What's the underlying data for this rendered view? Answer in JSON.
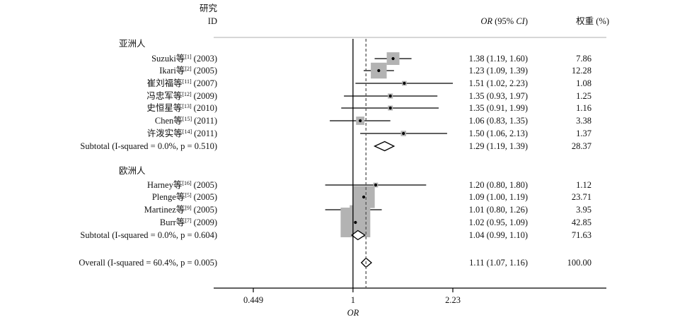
{
  "chart_data": {
    "type": "forest",
    "header": {
      "study_line1": "研究",
      "study_line2": "ID",
      "or_label_italic": "OR",
      "or_label_paren": " (95% ",
      "or_label_ci": "CI",
      "or_label_close": ")",
      "weight_label": "权重 (%)"
    },
    "xlabel": "OR",
    "x_ticks": [
      {
        "value": 0.449,
        "label": "0.449"
      },
      {
        "value": 1,
        "label": "1"
      },
      {
        "value": 2.23,
        "label": "2.23"
      }
    ],
    "x_scale": "log",
    "xlim": [
      0.449,
      2.23
    ],
    "null_value": 1,
    "overall_reference": 1.11,
    "groups": [
      {
        "name": "亚洲人",
        "studies": [
          {
            "name": "Suzuki等",
            "ref": "[1]",
            "year": "(2003)",
            "or": 1.38,
            "lo": 1.19,
            "hi": 1.6,
            "ci_text": "1.38 (1.19, 1.60)",
            "weight": 7.86,
            "weight_text": "7.86"
          },
          {
            "name": "Ikari等",
            "ref": "[2]",
            "year": "(2005)",
            "or": 1.23,
            "lo": 1.09,
            "hi": 1.39,
            "ci_text": "1.23 (1.09, 1.39)",
            "weight": 12.28,
            "weight_text": "12.28"
          },
          {
            "name": "崔刘福等",
            "ref": "[11]",
            "year": "(2007)",
            "or": 1.51,
            "lo": 1.02,
            "hi": 2.23,
            "ci_text": "1.51 (1.02, 2.23)",
            "weight": 1.08,
            "weight_text": "1.08"
          },
          {
            "name": "冯忠军等",
            "ref": "[12]",
            "year": "(2009)",
            "or": 1.35,
            "lo": 0.93,
            "hi": 1.97,
            "ci_text": "1.35 (0.93, 1.97)",
            "weight": 1.25,
            "weight_text": "1.25"
          },
          {
            "name": "史恒星等",
            "ref": "[13]",
            "year": "(2010)",
            "or": 1.35,
            "lo": 0.91,
            "hi": 1.99,
            "ci_text": "1.35 (0.91, 1.99)",
            "weight": 1.16,
            "weight_text": "1.16"
          },
          {
            "name": "Chen等",
            "ref": "[15]",
            "year": "(2011)",
            "or": 1.06,
            "lo": 0.83,
            "hi": 1.35,
            "ci_text": "1.06 (0.83, 1.35)",
            "weight": 3.38,
            "weight_text": "3.38"
          },
          {
            "name": "许泼实等",
            "ref": "[14]",
            "year": "(2011)",
            "or": 1.5,
            "lo": 1.06,
            "hi": 2.13,
            "ci_text": "1.50 (1.06, 2.13)",
            "weight": 1.37,
            "weight_text": "1.37"
          }
        ],
        "subtotal": {
          "label": "Subtotal  (I-squared = 0.0%, p = 0.510)",
          "or": 1.29,
          "lo": 1.19,
          "hi": 1.39,
          "ci_text": "1.29 (1.19, 1.39)",
          "weight_text": "28.37"
        }
      },
      {
        "name": "欧洲人",
        "studies": [
          {
            "name": "Harney等",
            "ref": "[16]",
            "year": "(2005)",
            "or": 1.2,
            "lo": 0.8,
            "hi": 1.8,
            "ci_text": "1.20 (0.80, 1.80)",
            "weight": 1.12,
            "weight_text": "1.12"
          },
          {
            "name": "Plenge等",
            "ref": "[5]",
            "year": "(2005)",
            "or": 1.09,
            "lo": 1.0,
            "hi": 1.19,
            "ci_text": "1.09 (1.00, 1.19)",
            "weight": 23.71,
            "weight_text": "23.71"
          },
          {
            "name": "Martinez等",
            "ref": "[9]",
            "year": "(2005)",
            "or": 1.01,
            "lo": 0.8,
            "hi": 1.26,
            "ci_text": "1.01 (0.80, 1.26)",
            "weight": 3.95,
            "weight_text": "3.95"
          },
          {
            "name": "Burr等",
            "ref": "[7]",
            "year": "(2009)",
            "or": 1.02,
            "lo": 0.95,
            "hi": 1.09,
            "ci_text": "1.02 (0.95, 1.09)",
            "weight": 42.85,
            "weight_text": "42.85"
          }
        ],
        "subtotal": {
          "label": "Subtotal  (I-squared = 0.0%, p = 0.604)",
          "or": 1.04,
          "lo": 0.99,
          "hi": 1.1,
          "ci_text": "1.04 (0.99, 1.10)",
          "weight_text": "71.63"
        }
      }
    ],
    "overall": {
      "label": "Overall  (I-squared = 60.4%, p = 0.005)",
      "or": 1.11,
      "lo": 1.07,
      "hi": 1.16,
      "ci_text": "1.11 (1.07, 1.16)",
      "weight_text": "100.00"
    },
    "colors": {
      "box": "#b3b3b3",
      "line": "#000000",
      "reference": "#555555",
      "header_rule": "#c8c8c8"
    }
  }
}
